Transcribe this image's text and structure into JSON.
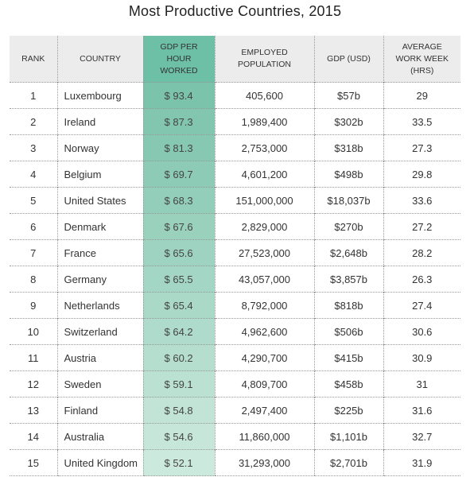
{
  "title": "Most Productive Countries, 2015",
  "table": {
    "headers": [
      "RANK",
      "COUNTRY",
      "GDP PER HOUR WORKED",
      "EMPLOYED POPULATION",
      "GDP (USD)",
      "AVERAGE WORK WEEK (HRS)"
    ],
    "rows": [
      [
        "1",
        "Luxembourg",
        "$ 93.4",
        "405,600",
        "$57b",
        "29"
      ],
      [
        "2",
        "Ireland",
        "$ 87.3",
        "1,989,400",
        "$302b",
        "33.5"
      ],
      [
        "3",
        "Norway",
        "$ 81.3",
        "2,753,000",
        "$318b",
        "27.3"
      ],
      [
        "4",
        "Belgium",
        "$ 69.7",
        "4,601,200",
        "$498b",
        "29.8"
      ],
      [
        "5",
        "United States",
        "$ 68.3",
        "151,000,000",
        "$18,037b",
        "33.6"
      ],
      [
        "6",
        "Denmark",
        "$ 67.6",
        "2,829,000",
        "$270b",
        "27.2"
      ],
      [
        "7",
        "France",
        "$ 65.6",
        "27,523,000",
        "$2,648b",
        "28.2"
      ],
      [
        "8",
        "Germany",
        "$ 65.5",
        "43,057,000",
        "$3,857b",
        "26.3"
      ],
      [
        "9",
        "Netherlands",
        "$ 65.4",
        "8,792,000",
        "$818b",
        "27.4"
      ],
      [
        "10",
        "Switzerland",
        "$ 64.2",
        "4,962,600",
        "$506b",
        "30.6"
      ],
      [
        "11",
        "Austria",
        "$ 60.2",
        "4,290,700",
        "$415b",
        "30.9"
      ],
      [
        "12",
        "Sweden",
        "$ 59.1",
        "4,809,700",
        "$458b",
        "31"
      ],
      [
        "13",
        "Finland",
        "$ 54.8",
        "2,497,400",
        "$225b",
        "31.6"
      ],
      [
        "14",
        "Australia",
        "$ 54.6",
        "11,860,000",
        "$1,101b",
        "32.7"
      ],
      [
        "15",
        "United Kingdom",
        "$ 52.1",
        "31,293,000",
        "$2,701b",
        "31.9"
      ]
    ]
  }
}
